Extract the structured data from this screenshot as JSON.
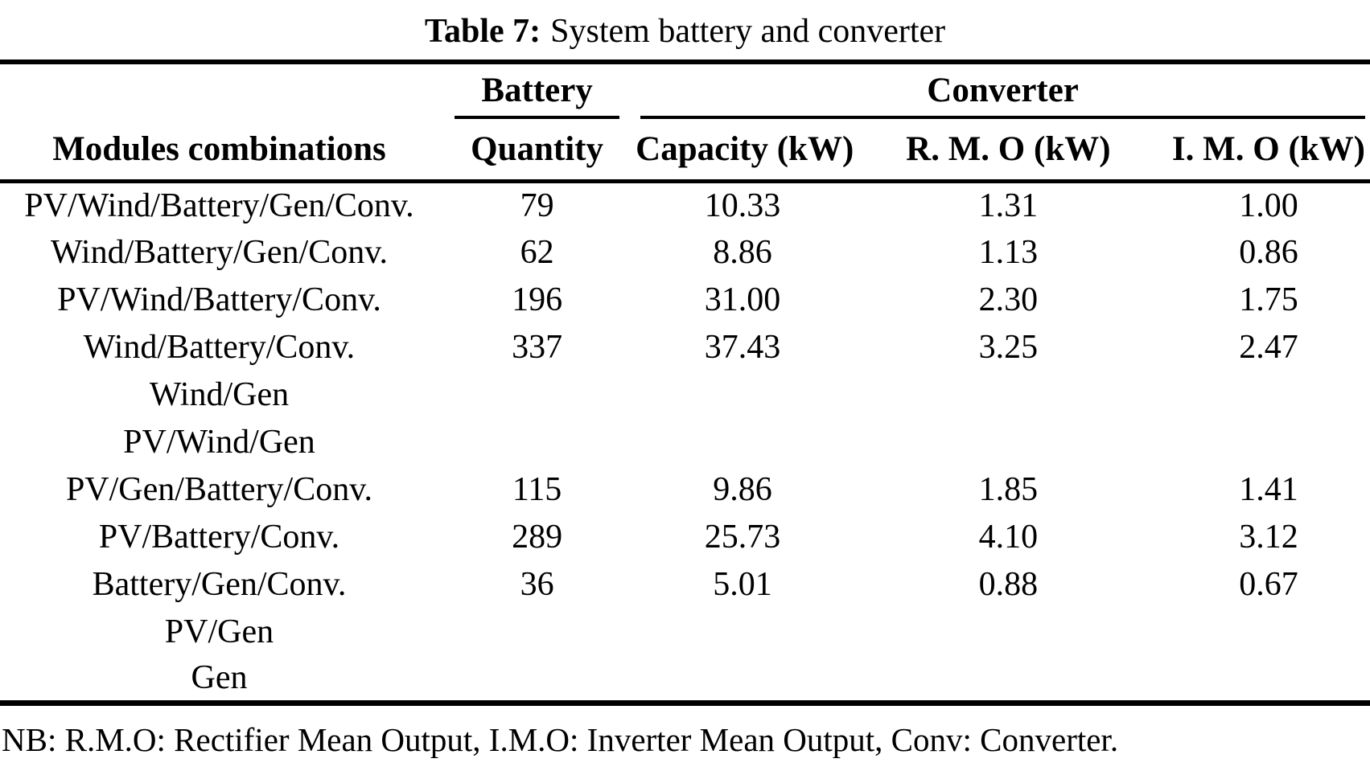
{
  "page": {
    "background_color": "#ffffff",
    "text_color": "#000000",
    "rule_color": "#000000"
  },
  "caption": {
    "label": "Table 7:",
    "title": "System battery and converter"
  },
  "table": {
    "groups": {
      "battery": "Battery",
      "converter": "Converter"
    },
    "columns": [
      "Modules combinations",
      "Quantity",
      "Capacity (kW)",
      "R. M. O (kW)",
      "I. M. O (kW)"
    ],
    "rows": [
      [
        "PV/Wind/Battery/Gen/Conv.",
        "79",
        "10.33",
        "1.31",
        "1.00"
      ],
      [
        "Wind/Battery/Gen/Conv.",
        "62",
        "8.86",
        "1.13",
        "0.86"
      ],
      [
        "PV/Wind/Battery/Conv.",
        "196",
        "31.00",
        "2.30",
        "1.75"
      ],
      [
        "Wind/Battery/Conv.",
        "337",
        "37.43",
        "3.25",
        "2.47"
      ],
      [
        "Wind/Gen",
        "",
        "",
        "",
        ""
      ],
      [
        "PV/Wind/Gen",
        "",
        "",
        "",
        ""
      ],
      [
        "PV/Gen/Battery/Conv.",
        "115",
        "9.86",
        "1.85",
        "1.41"
      ],
      [
        "PV/Battery/Conv.",
        "289",
        "25.73",
        "4.10",
        "3.12"
      ],
      [
        "Battery/Gen/Conv.",
        "36",
        "5.01",
        "0.88",
        "0.67"
      ],
      [
        "PV/Gen",
        "",
        "",
        "",
        ""
      ],
      [
        "Gen",
        "",
        "",
        "",
        ""
      ]
    ],
    "note": "NB: R.M.O: Rectifier Mean Output, I.M.O: Inverter Mean Output, Conv: Converter."
  }
}
